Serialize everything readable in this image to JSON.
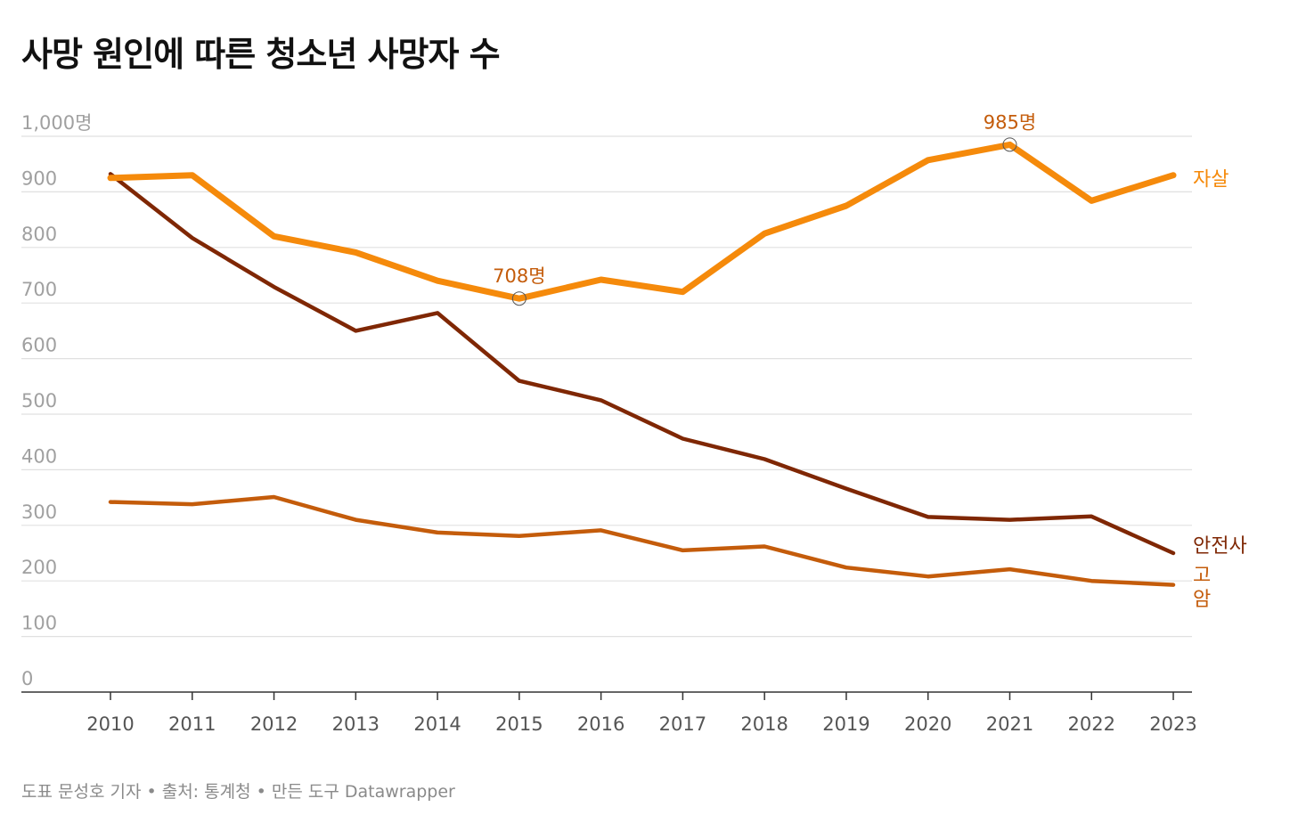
{
  "title": "사망 원인에 따른 청소년 사망자 수",
  "footer": "도표 문성호 기자 • 출처: 통계청 • 만든 도구 Datawrapper",
  "colors": {
    "suicide": "#f58a0b",
    "accident": "#7f2704",
    "cancer": "#c45c0b",
    "annotation": "#c45c0b",
    "grid": "#e0e0e0",
    "tick": "#a0a0a0",
    "axis": "#333333"
  },
  "chart_data": {
    "type": "line",
    "title": "사망 원인에 따른 청소년 사망자 수",
    "x": [
      "2010",
      "2011",
      "2012",
      "2013",
      "2014",
      "2015",
      "2016",
      "2017",
      "2018",
      "2019",
      "2020",
      "2021",
      "2022",
      "2023"
    ],
    "ylim": [
      0,
      1000
    ],
    "yticks": [
      {
        "value": 0,
        "label": "0"
      },
      {
        "value": 100,
        "label": "100"
      },
      {
        "value": 200,
        "label": "200"
      },
      {
        "value": 300,
        "label": "300"
      },
      {
        "value": 400,
        "label": "400"
      },
      {
        "value": 500,
        "label": "500"
      },
      {
        "value": 600,
        "label": "600"
      },
      {
        "value": 700,
        "label": "700"
      },
      {
        "value": 800,
        "label": "800"
      },
      {
        "value": 900,
        "label": "900"
      },
      {
        "value": 1000,
        "label": "1,000명"
      }
    ],
    "grid": true,
    "series": [
      {
        "name": "자살",
        "color": "#f58a0b",
        "width": 7,
        "values": [
          925,
          930,
          820,
          791,
          740,
          708,
          742,
          720,
          825,
          875,
          957,
          985,
          884,
          930
        ]
      },
      {
        "name": "안전사",
        "color": "#7f2704",
        "width": 4.5,
        "values": [
          932,
          817,
          729,
          650,
          682,
          560,
          525,
          456,
          419,
          366,
          315,
          310,
          316,
          250
        ]
      },
      {
        "name": "고\n암",
        "color": "#c45c0b",
        "width": 4.5,
        "values": [
          342,
          338,
          351,
          310,
          287,
          281,
          291,
          255,
          262,
          224,
          208,
          221,
          200,
          193
        ]
      }
    ],
    "annotations": [
      {
        "label": "708명",
        "x_index": 5,
        "value": 708
      },
      {
        "label": "985명",
        "x_index": 11,
        "value": 985
      }
    ]
  }
}
